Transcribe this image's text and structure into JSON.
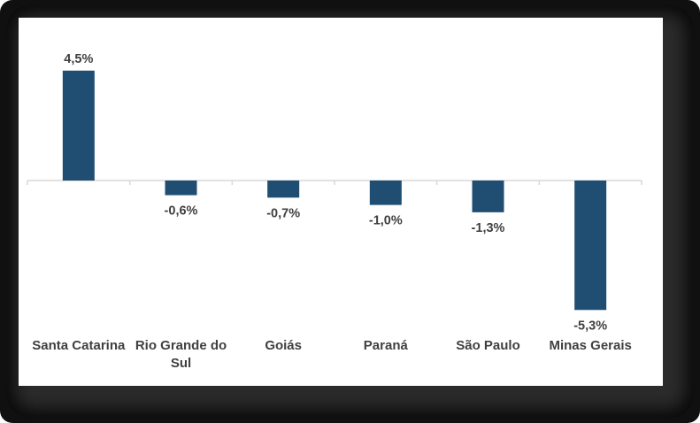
{
  "chart_data": {
    "type": "bar",
    "categories": [
      "Santa Catarina",
      "Rio Grande do Sul",
      "Goiás",
      "Paraná",
      "São Paulo",
      "Minas Gerais"
    ],
    "category_lines": [
      [
        "Santa Catarina"
      ],
      [
        "Rio Grande do",
        "Sul"
      ],
      [
        "Goiás"
      ],
      [
        "Paraná"
      ],
      [
        "São Paulo"
      ],
      [
        "Minas Gerais"
      ]
    ],
    "values": [
      4.5,
      -0.6,
      -0.7,
      -1.0,
      -1.3,
      -5.3
    ],
    "data_labels": [
      "4,5%",
      "-0,6%",
      "-0,7%",
      "-1,0%",
      "-1,3%",
      "-5,3%"
    ],
    "title": "",
    "xlabel": "",
    "ylabel": "",
    "ylim": [
      -5.3,
      4.5
    ],
    "grid": false,
    "legend": "none",
    "colors": {
      "bar": "#1f4e72",
      "axis": "#d9d9d9",
      "text": "#404040"
    }
  }
}
